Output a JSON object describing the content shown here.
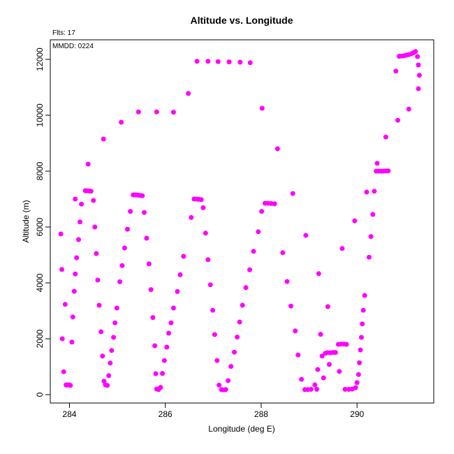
{
  "chart_data": {
    "type": "scatter",
    "title": "Altitude vs. Longitude",
    "xlabel": "Longitude (deg E)",
    "ylabel": "Altitude (m)",
    "xlim": [
      283.6,
      291.6
    ],
    "ylim": [
      -300,
      12700
    ],
    "xticks": [
      284,
      286,
      288,
      290
    ],
    "yticks": [
      0,
      2000,
      4000,
      6000,
      8000,
      10000,
      12000
    ],
    "annotations": {
      "flights": "Flts: 17",
      "date": "MMDD: 0224"
    },
    "marker_color": "#ff00ff",
    "grid": false,
    "points": [
      [
        283.82,
        5750
      ],
      [
        283.84,
        4480
      ],
      [
        283.85,
        2000
      ],
      [
        283.88,
        820
      ],
      [
        283.91,
        3230
      ],
      [
        283.93,
        350
      ],
      [
        283.96,
        340
      ],
      [
        283.99,
        350
      ],
      [
        284.02,
        330
      ],
      [
        284.05,
        1880
      ],
      [
        284.07,
        2780
      ],
      [
        284.1,
        3700
      ],
      [
        284.12,
        4320
      ],
      [
        284.15,
        4900
      ],
      [
        284.19,
        5550
      ],
      [
        284.22,
        6180
      ],
      [
        284.25,
        6820
      ],
      [
        284.12,
        7000
      ],
      [
        284.33,
        7300
      ],
      [
        284.37,
        7300
      ],
      [
        284.41,
        7290
      ],
      [
        284.45,
        7280
      ],
      [
        284.39,
        8250
      ],
      [
        284.71,
        9150
      ],
      [
        285.08,
        9750
      ],
      [
        285.44,
        10120
      ],
      [
        285.82,
        10120
      ],
      [
        286.17,
        10110
      ],
      [
        286.48,
        10780
      ],
      [
        286.66,
        11930
      ],
      [
        286.89,
        11930
      ],
      [
        287.1,
        11920
      ],
      [
        287.33,
        11910
      ],
      [
        287.56,
        11900
      ],
      [
        287.77,
        11880
      ],
      [
        284.5,
        6950
      ],
      [
        284.53,
        6000
      ],
      [
        284.56,
        5050
      ],
      [
        284.59,
        4100
      ],
      [
        284.62,
        3200
      ],
      [
        284.66,
        2250
      ],
      [
        284.69,
        1380
      ],
      [
        284.72,
        480
      ],
      [
        284.75,
        350
      ],
      [
        284.79,
        330
      ],
      [
        284.82,
        680
      ],
      [
        284.85,
        1130
      ],
      [
        284.88,
        1580
      ],
      [
        284.92,
        2050
      ],
      [
        284.95,
        2570
      ],
      [
        284.99,
        3100
      ],
      [
        285.05,
        4040
      ],
      [
        285.1,
        4620
      ],
      [
        285.15,
        5250
      ],
      [
        285.21,
        5920
      ],
      [
        285.27,
        6560
      ],
      [
        285.33,
        7150
      ],
      [
        285.38,
        7150
      ],
      [
        285.43,
        7140
      ],
      [
        285.48,
        7130
      ],
      [
        285.52,
        7120
      ],
      [
        285.56,
        6520
      ],
      [
        285.61,
        5600
      ],
      [
        285.66,
        4680
      ],
      [
        285.7,
        3760
      ],
      [
        285.74,
        2760
      ],
      [
        285.78,
        1750
      ],
      [
        285.8,
        750
      ],
      [
        285.82,
        200
      ],
      [
        285.86,
        180
      ],
      [
        285.9,
        260
      ],
      [
        285.94,
        760
      ],
      [
        285.98,
        1220
      ],
      [
        286.03,
        1700
      ],
      [
        286.07,
        2200
      ],
      [
        286.12,
        2570
      ],
      [
        286.17,
        3100
      ],
      [
        286.25,
        3690
      ],
      [
        286.31,
        4290
      ],
      [
        286.38,
        4950
      ],
      [
        286.54,
        6340
      ],
      [
        286.6,
        7000
      ],
      [
        286.65,
        7000
      ],
      [
        286.7,
        6990
      ],
      [
        286.75,
        6980
      ],
      [
        286.79,
        6690
      ],
      [
        286.84,
        5780
      ],
      [
        286.89,
        4830
      ],
      [
        286.94,
        3930
      ],
      [
        286.99,
        3020
      ],
      [
        287.03,
        2150
      ],
      [
        287.08,
        1220
      ],
      [
        287.12,
        340
      ],
      [
        287.17,
        180
      ],
      [
        287.22,
        170
      ],
      [
        287.26,
        180
      ],
      [
        287.31,
        500
      ],
      [
        287.37,
        1010
      ],
      [
        287.44,
        1520
      ],
      [
        287.5,
        2060
      ],
      [
        287.55,
        2600
      ],
      [
        287.61,
        3200
      ],
      [
        287.68,
        3830
      ],
      [
        287.76,
        4470
      ],
      [
        287.84,
        5130
      ],
      [
        287.94,
        5830
      ],
      [
        288.01,
        6560
      ],
      [
        288.02,
        10250
      ],
      [
        288.08,
        6850
      ],
      [
        288.14,
        6850
      ],
      [
        288.21,
        6840
      ],
      [
        288.28,
        6830
      ],
      [
        288.34,
        8800
      ],
      [
        288.45,
        5080
      ],
      [
        288.54,
        4050
      ],
      [
        288.62,
        3170
      ],
      [
        288.66,
        7200
      ],
      [
        288.71,
        2280
      ],
      [
        288.77,
        1420
      ],
      [
        288.84,
        550
      ],
      [
        288.91,
        180
      ],
      [
        288.97,
        180
      ],
      [
        289.04,
        190
      ],
      [
        288.93,
        5700
      ],
      [
        289.12,
        350
      ],
      [
        289.16,
        190
      ],
      [
        289.2,
        4330
      ],
      [
        289.18,
        900
      ],
      [
        289.24,
        2160
      ],
      [
        289.27,
        1380
      ],
      [
        289.3,
        600
      ],
      [
        289.34,
        1480
      ],
      [
        289.39,
        3150
      ],
      [
        289.42,
        1080
      ],
      [
        289.38,
        1500
      ],
      [
        289.44,
        1500
      ],
      [
        289.5,
        1510
      ],
      [
        289.55,
        1510
      ],
      [
        289.61,
        1800
      ],
      [
        289.67,
        1810
      ],
      [
        289.73,
        1810
      ],
      [
        289.78,
        1800
      ],
      [
        289.63,
        830
      ],
      [
        289.69,
        5230
      ],
      [
        289.75,
        190
      ],
      [
        289.83,
        190
      ],
      [
        289.9,
        200
      ],
      [
        289.95,
        6220
      ],
      [
        289.97,
        250
      ],
      [
        290.0,
        430
      ],
      [
        290.03,
        720
      ],
      [
        290.05,
        1140
      ],
      [
        290.07,
        1600
      ],
      [
        290.09,
        2050
      ],
      [
        290.11,
        2530
      ],
      [
        290.13,
        3020
      ],
      [
        290.16,
        3550
      ],
      [
        290.2,
        7250
      ],
      [
        290.25,
        4920
      ],
      [
        290.29,
        5660
      ],
      [
        290.33,
        6450
      ],
      [
        290.36,
        7280
      ],
      [
        290.4,
        8000
      ],
      [
        290.45,
        8000
      ],
      [
        290.5,
        8000
      ],
      [
        290.55,
        8000
      ],
      [
        290.6,
        8010
      ],
      [
        290.65,
        8010
      ],
      [
        290.42,
        8280
      ],
      [
        290.6,
        9220
      ],
      [
        290.85,
        9820
      ],
      [
        291.08,
        10220
      ],
      [
        290.81,
        11580
      ],
      [
        290.88,
        12110
      ],
      [
        290.93,
        12120
      ],
      [
        290.98,
        12130
      ],
      [
        291.03,
        12150
      ],
      [
        291.08,
        12170
      ],
      [
        291.13,
        12200
      ],
      [
        291.18,
        12240
      ],
      [
        291.22,
        12280
      ],
      [
        291.26,
        12100
      ],
      [
        291.28,
        11800
      ],
      [
        291.3,
        11430
      ],
      [
        291.28,
        10950
      ]
    ]
  }
}
